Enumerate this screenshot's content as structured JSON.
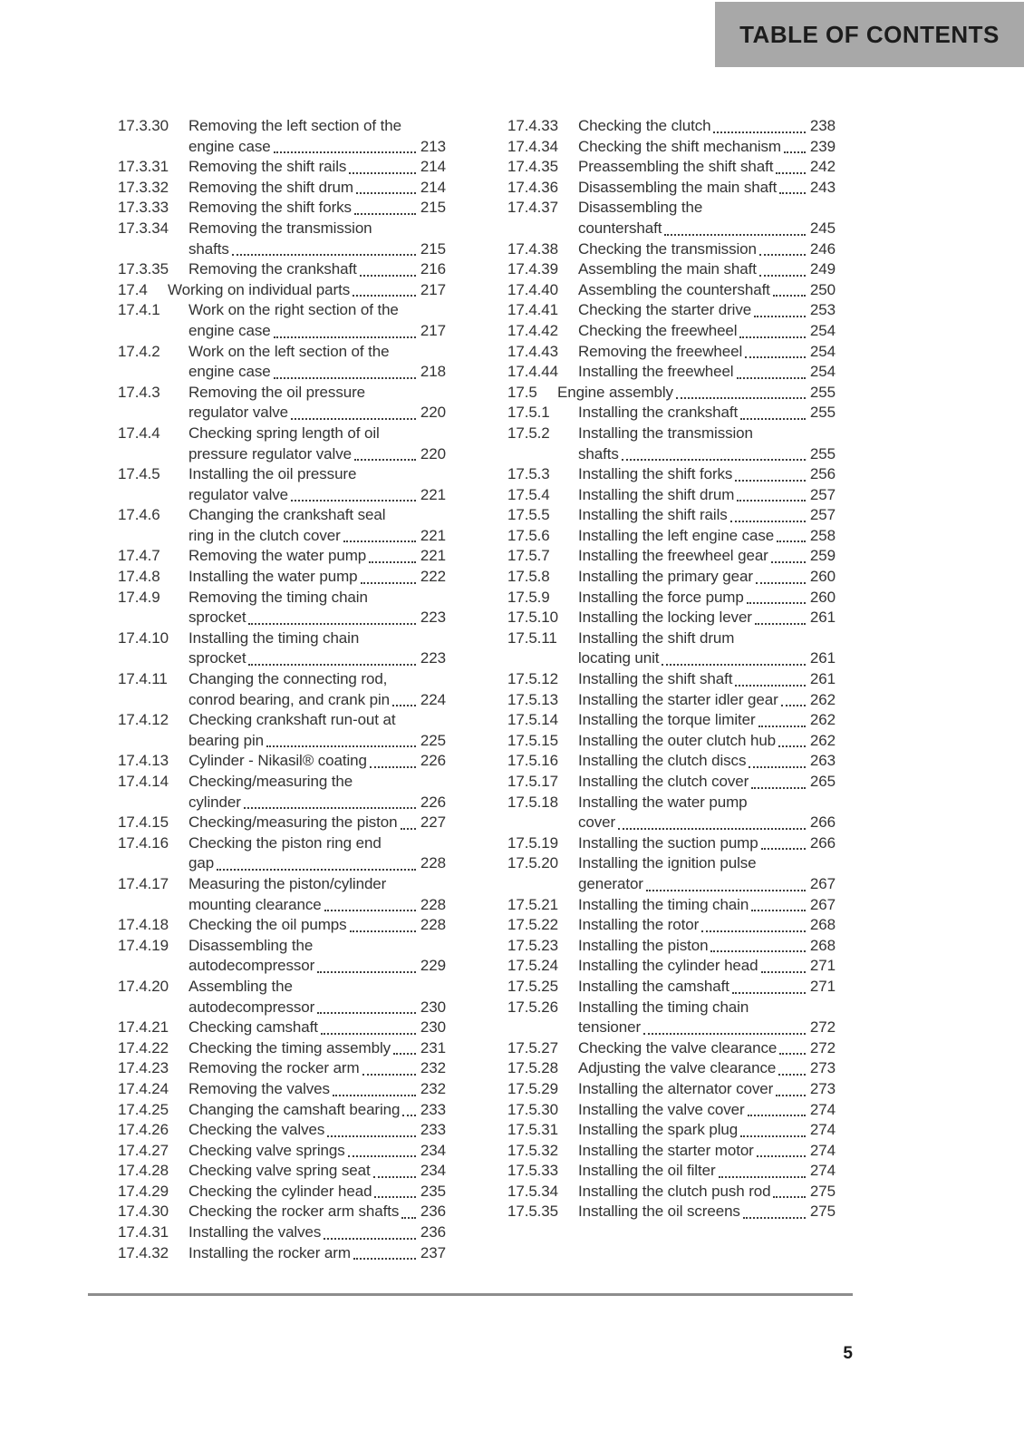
{
  "header": {
    "title": "TABLE OF CONTENTS",
    "bg_color": "#a8a8a8",
    "text_color": "#1c1c1c"
  },
  "colors": {
    "body_text": "#333333",
    "rule": "#8d8d8d"
  },
  "footer": {
    "page_number": "5"
  },
  "toc": {
    "columns": [
      {
        "entries": [
          {
            "num": "17.3.30",
            "lines": [
              "Removing the left section of the",
              "engine case"
            ],
            "page": "213"
          },
          {
            "num": "17.3.31",
            "lines": [
              "Removing the shift rails"
            ],
            "page": "214"
          },
          {
            "num": "17.3.32",
            "lines": [
              "Removing the shift drum"
            ],
            "page": "214"
          },
          {
            "num": "17.3.33",
            "lines": [
              "Removing the shift forks"
            ],
            "page": "215"
          },
          {
            "num": "17.3.34",
            "lines": [
              "Removing the transmission",
              "shafts"
            ],
            "page": "215"
          },
          {
            "num": "17.3.35",
            "lines": [
              "Removing the crankshaft"
            ],
            "page": "216"
          },
          {
            "num": "17.4",
            "level": 2,
            "lines": [
              "Working on individual parts"
            ],
            "page": "217"
          },
          {
            "num": "17.4.1",
            "lines": [
              "Work on the right section of the",
              "engine case"
            ],
            "page": "217"
          },
          {
            "num": "17.4.2",
            "lines": [
              "Work on the left section of the",
              "engine case"
            ],
            "page": "218"
          },
          {
            "num": "17.4.3",
            "lines": [
              "Removing the oil pressure",
              "regulator valve"
            ],
            "page": "220"
          },
          {
            "num": "17.4.4",
            "lines": [
              "Checking spring length of oil",
              "pressure regulator valve"
            ],
            "page": "220"
          },
          {
            "num": "17.4.5",
            "lines": [
              "Installing the oil pressure",
              "regulator valve"
            ],
            "page": "221"
          },
          {
            "num": "17.4.6",
            "lines": [
              "Changing the crankshaft seal",
              "ring in the clutch cover"
            ],
            "page": "221"
          },
          {
            "num": "17.4.7",
            "lines": [
              "Removing the water pump"
            ],
            "page": "221"
          },
          {
            "num": "17.4.8",
            "lines": [
              "Installing the water pump"
            ],
            "page": "222"
          },
          {
            "num": "17.4.9",
            "lines": [
              "Removing the timing chain",
              "sprocket"
            ],
            "page": "223"
          },
          {
            "num": "17.4.10",
            "lines": [
              "Installing the timing chain",
              "sprocket"
            ],
            "page": "223"
          },
          {
            "num": "17.4.11",
            "lines": [
              "Changing the connecting rod,",
              "conrod bearing, and crank pin"
            ],
            "page": "224"
          },
          {
            "num": "17.4.12",
            "lines": [
              "Checking crankshaft run-out at",
              "bearing pin"
            ],
            "page": "225"
          },
          {
            "num": "17.4.13",
            "lines": [
              "Cylinder - Nikasil® coating"
            ],
            "page": "226"
          },
          {
            "num": "17.4.14",
            "lines": [
              "Checking/measuring the",
              "cylinder"
            ],
            "page": "226"
          },
          {
            "num": "17.4.15",
            "lines": [
              "Checking/measuring the piston"
            ],
            "page": "227"
          },
          {
            "num": "17.4.16",
            "lines": [
              "Checking the piston ring end",
              "gap"
            ],
            "page": "228"
          },
          {
            "num": "17.4.17",
            "lines": [
              "Measuring the piston/cylinder",
              "mounting clearance"
            ],
            "page": "228"
          },
          {
            "num": "17.4.18",
            "lines": [
              "Checking the oil pumps"
            ],
            "page": "228"
          },
          {
            "num": "17.4.19",
            "lines": [
              "Disassembling the",
              "autodecompressor"
            ],
            "page": "229"
          },
          {
            "num": "17.4.20",
            "lines": [
              "Assembling the",
              "autodecompressor"
            ],
            "page": "230"
          },
          {
            "num": "17.4.21",
            "lines": [
              "Checking camshaft"
            ],
            "page": "230"
          },
          {
            "num": "17.4.22",
            "lines": [
              "Checking the timing assembly"
            ],
            "page": "231"
          },
          {
            "num": "17.4.23",
            "lines": [
              "Removing the rocker arm"
            ],
            "page": "232"
          },
          {
            "num": "17.4.24",
            "lines": [
              "Removing the valves"
            ],
            "page": "232"
          },
          {
            "num": "17.4.25",
            "lines": [
              "Changing the camshaft bearing"
            ],
            "page": "233"
          },
          {
            "num": "17.4.26",
            "lines": [
              "Checking the valves"
            ],
            "page": "233"
          },
          {
            "num": "17.4.27",
            "lines": [
              "Checking valve springs"
            ],
            "page": "234"
          },
          {
            "num": "17.4.28",
            "lines": [
              "Checking valve spring seat"
            ],
            "page": "234"
          },
          {
            "num": "17.4.29",
            "lines": [
              "Checking the cylinder head"
            ],
            "page": "235"
          },
          {
            "num": "17.4.30",
            "lines": [
              "Checking the rocker arm shafts"
            ],
            "page": "236"
          },
          {
            "num": "17.4.31",
            "lines": [
              "Installing the valves"
            ],
            "page": "236"
          },
          {
            "num": "17.4.32",
            "lines": [
              "Installing the rocker arm"
            ],
            "page": "237"
          }
        ]
      },
      {
        "entries": [
          {
            "num": "17.4.33",
            "lines": [
              "Checking the clutch"
            ],
            "page": "238"
          },
          {
            "num": "17.4.34",
            "lines": [
              "Checking the shift mechanism"
            ],
            "page": "239"
          },
          {
            "num": "17.4.35",
            "lines": [
              "Preassembling the shift shaft"
            ],
            "page": "242"
          },
          {
            "num": "17.4.36",
            "lines": [
              "Disassembling the main shaft"
            ],
            "page": "243"
          },
          {
            "num": "17.4.37",
            "lines": [
              "Disassembling the",
              "countershaft"
            ],
            "page": "245"
          },
          {
            "num": "17.4.38",
            "lines": [
              "Checking the transmission"
            ],
            "page": "246"
          },
          {
            "num": "17.4.39",
            "lines": [
              "Assembling the main shaft"
            ],
            "page": "249"
          },
          {
            "num": "17.4.40",
            "lines": [
              "Assembling the countershaft"
            ],
            "page": "250"
          },
          {
            "num": "17.4.41",
            "lines": [
              "Checking the starter drive"
            ],
            "page": "253"
          },
          {
            "num": "17.4.42",
            "lines": [
              "Checking the freewheel"
            ],
            "page": "254"
          },
          {
            "num": "17.4.43",
            "lines": [
              "Removing the freewheel"
            ],
            "page": "254"
          },
          {
            "num": "17.4.44",
            "lines": [
              "Installing the freewheel"
            ],
            "page": "254"
          },
          {
            "num": "17.5",
            "level": 2,
            "lines": [
              "Engine assembly"
            ],
            "page": "255"
          },
          {
            "num": "17.5.1",
            "lines": [
              "Installing the crankshaft"
            ],
            "page": "255"
          },
          {
            "num": "17.5.2",
            "lines": [
              "Installing the transmission",
              "shafts"
            ],
            "page": "255"
          },
          {
            "num": "17.5.3",
            "lines": [
              "Installing the shift forks"
            ],
            "page": "256"
          },
          {
            "num": "17.5.4",
            "lines": [
              "Installing the shift drum"
            ],
            "page": "257"
          },
          {
            "num": "17.5.5",
            "lines": [
              "Installing the shift rails"
            ],
            "page": "257"
          },
          {
            "num": "17.5.6",
            "lines": [
              "Installing the left engine case"
            ],
            "page": "258"
          },
          {
            "num": "17.5.7",
            "lines": [
              "Installing the freewheel gear"
            ],
            "page": "259"
          },
          {
            "num": "17.5.8",
            "lines": [
              "Installing the primary gear"
            ],
            "page": "260"
          },
          {
            "num": "17.5.9",
            "lines": [
              "Installing the force pump"
            ],
            "page": "260"
          },
          {
            "num": "17.5.10",
            "lines": [
              "Installing the locking lever"
            ],
            "page": "261"
          },
          {
            "num": "17.5.11",
            "lines": [
              "Installing the shift drum",
              "locating unit"
            ],
            "page": "261"
          },
          {
            "num": "17.5.12",
            "lines": [
              "Installing the shift shaft"
            ],
            "page": "261"
          },
          {
            "num": "17.5.13",
            "lines": [
              "Installing the starter idler gear"
            ],
            "page": "262"
          },
          {
            "num": "17.5.14",
            "lines": [
              "Installing the torque limiter"
            ],
            "page": "262"
          },
          {
            "num": "17.5.15",
            "lines": [
              "Installing the outer clutch hub"
            ],
            "page": "262"
          },
          {
            "num": "17.5.16",
            "lines": [
              "Installing the clutch discs"
            ],
            "page": "263"
          },
          {
            "num": "17.5.17",
            "lines": [
              "Installing the clutch cover"
            ],
            "page": "265"
          },
          {
            "num": "17.5.18",
            "lines": [
              "Installing the water pump",
              "cover"
            ],
            "page": "266"
          },
          {
            "num": "17.5.19",
            "lines": [
              "Installing the suction pump"
            ],
            "page": "266"
          },
          {
            "num": "17.5.20",
            "lines": [
              "Installing the ignition pulse",
              "generator"
            ],
            "page": "267"
          },
          {
            "num": "17.5.21",
            "lines": [
              "Installing the timing chain"
            ],
            "page": "267"
          },
          {
            "num": "17.5.22",
            "lines": [
              "Installing the rotor"
            ],
            "page": "268"
          },
          {
            "num": "17.5.23",
            "lines": [
              "Installing the piston"
            ],
            "page": "268"
          },
          {
            "num": "17.5.24",
            "lines": [
              "Installing the cylinder head"
            ],
            "page": "271"
          },
          {
            "num": "17.5.25",
            "lines": [
              "Installing the camshaft"
            ],
            "page": "271"
          },
          {
            "num": "17.5.26",
            "lines": [
              "Installing the timing chain",
              "tensioner"
            ],
            "page": "272"
          },
          {
            "num": "17.5.27",
            "lines": [
              "Checking the valve clearance"
            ],
            "page": "272"
          },
          {
            "num": "17.5.28",
            "lines": [
              "Adjusting the valve clearance"
            ],
            "page": "273"
          },
          {
            "num": "17.5.29",
            "lines": [
              "Installing the alternator cover"
            ],
            "page": "273"
          },
          {
            "num": "17.5.30",
            "lines": [
              "Installing the valve cover"
            ],
            "page": "274"
          },
          {
            "num": "17.5.31",
            "lines": [
              "Installing the spark plug"
            ],
            "page": "274"
          },
          {
            "num": "17.5.32",
            "lines": [
              "Installing the starter motor"
            ],
            "page": "274"
          },
          {
            "num": "17.5.33",
            "lines": [
              "Installing the oil filter"
            ],
            "page": "274"
          },
          {
            "num": "17.5.34",
            "lines": [
              "Installing the clutch push rod"
            ],
            "page": "275"
          },
          {
            "num": "17.5.35",
            "lines": [
              "Installing the oil screens"
            ],
            "page": "275"
          }
        ]
      }
    ]
  }
}
